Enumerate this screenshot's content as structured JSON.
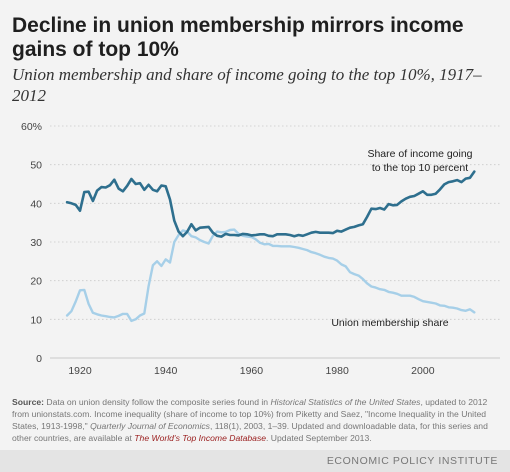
{
  "title": "Decline in union membership mirrors income gains of top 10%",
  "subtitle": "Union membership and share of income going to the top 10%, 1917–2012",
  "chart_data": {
    "type": "line",
    "xlim": [
      1913,
      2018
    ],
    "ylim": [
      0,
      60
    ],
    "x_ticks": [
      1920,
      1940,
      1960,
      1980,
      2000
    ],
    "y_ticks": [
      0,
      10,
      20,
      30,
      40,
      50,
      60
    ],
    "y_tick_labels": [
      "0",
      "10",
      "20",
      "30",
      "40",
      "50",
      "60%"
    ],
    "grid": "horizontal dotted",
    "series": [
      {
        "name": "Share of income going to the top 10 percent",
        "label_lines": [
          "Share of income going",
          "to the top 10 percent"
        ],
        "color": "#2e6f8e",
        "x": [
          1917,
          1918,
          1919,
          1920,
          1921,
          1922,
          1923,
          1924,
          1925,
          1926,
          1927,
          1928,
          1929,
          1930,
          1931,
          1932,
          1933,
          1934,
          1935,
          1936,
          1937,
          1938,
          1939,
          1940,
          1941,
          1942,
          1943,
          1944,
          1945,
          1946,
          1947,
          1948,
          1949,
          1950,
          1951,
          1952,
          1953,
          1954,
          1955,
          1956,
          1957,
          1958,
          1959,
          1960,
          1961,
          1962,
          1963,
          1964,
          1965,
          1966,
          1967,
          1968,
          1969,
          1970,
          1971,
          1972,
          1973,
          1974,
          1975,
          1976,
          1977,
          1978,
          1979,
          1980,
          1981,
          1982,
          1983,
          1984,
          1985,
          1986,
          1987,
          1988,
          1989,
          1990,
          1991,
          1992,
          1993,
          1994,
          1995,
          1996,
          1997,
          1998,
          1999,
          2000,
          2001,
          2002,
          2003,
          2004,
          2005,
          2006,
          2007,
          2008,
          2009,
          2010,
          2011,
          2012
        ],
        "values": [
          40.3,
          40.0,
          39.6,
          38.1,
          42.9,
          43.0,
          40.6,
          43.3,
          44.2,
          44.1,
          44.7,
          46.1,
          43.8,
          43.1,
          44.5,
          46.3,
          45.0,
          45.2,
          43.5,
          44.8,
          43.5,
          43.1,
          44.6,
          44.4,
          41.0,
          35.5,
          32.7,
          31.5,
          32.6,
          34.6,
          33.0,
          33.7,
          33.8,
          33.9,
          32.4,
          31.6,
          31.4,
          32.1,
          31.8,
          31.8,
          31.7,
          32.1,
          32.0,
          31.7,
          31.8,
          32.0,
          32.0,
          31.6,
          31.5,
          32.0,
          32.0,
          32.0,
          31.8,
          31.5,
          31.8,
          31.6,
          32.0,
          32.4,
          32.6,
          32.4,
          32.4,
          32.4,
          32.3,
          32.9,
          32.7,
          33.2,
          33.7,
          33.9,
          34.3,
          34.6,
          36.5,
          38.6,
          38.5,
          38.8,
          38.4,
          39.8,
          39.5,
          39.6,
          40.5,
          41.2,
          41.7,
          41.9,
          42.5,
          43.1,
          42.2,
          42.2,
          42.5,
          43.6,
          44.9,
          45.5,
          45.7,
          46.0,
          45.5,
          46.4,
          46.6,
          48.2
        ]
      },
      {
        "name": "Union membership share",
        "label_lines": [
          "Union membership share"
        ],
        "color": "#a6cfe8",
        "x": [
          1917,
          1918,
          1919,
          1920,
          1921,
          1922,
          1923,
          1924,
          1925,
          1926,
          1927,
          1928,
          1929,
          1930,
          1931,
          1932,
          1933,
          1934,
          1935,
          1936,
          1937,
          1938,
          1939,
          1940,
          1941,
          1942,
          1943,
          1944,
          1945,
          1946,
          1947,
          1948,
          1949,
          1950,
          1951,
          1952,
          1953,
          1954,
          1955,
          1956,
          1957,
          1958,
          1959,
          1960,
          1961,
          1962,
          1963,
          1964,
          1965,
          1966,
          1967,
          1968,
          1969,
          1970,
          1971,
          1972,
          1973,
          1974,
          1975,
          1976,
          1977,
          1978,
          1979,
          1980,
          1981,
          1982,
          1983,
          1984,
          1985,
          1986,
          1987,
          1988,
          1989,
          1990,
          1991,
          1992,
          1993,
          1994,
          1995,
          1996,
          1997,
          1998,
          1999,
          2000,
          2001,
          2002,
          2003,
          2004,
          2005,
          2006,
          2007,
          2008,
          2009,
          2010,
          2011,
          2012
        ],
        "values": [
          11.0,
          12.1,
          14.6,
          17.5,
          17.6,
          14.0,
          11.7,
          11.3,
          11.0,
          10.8,
          10.6,
          10.5,
          10.9,
          11.4,
          11.4,
          9.6,
          10.0,
          11.0,
          11.5,
          18.6,
          24.0,
          25.0,
          23.8,
          25.5,
          24.7,
          30.0,
          31.8,
          33.0,
          32.7,
          31.5,
          31.2,
          30.5,
          30.0,
          29.6,
          31.6,
          32.7,
          32.5,
          32.6,
          33.1,
          33.2,
          32.1,
          31.6,
          31.4,
          31.3,
          30.7,
          29.8,
          29.4,
          29.5,
          29.0,
          29.0,
          28.9,
          28.9,
          28.9,
          28.7,
          28.5,
          28.2,
          27.9,
          27.4,
          27.1,
          26.7,
          26.2,
          25.9,
          25.7,
          25.2,
          24.2,
          23.7,
          22.2,
          21.7,
          21.3,
          20.4,
          19.3,
          18.5,
          18.2,
          17.8,
          17.6,
          17.1,
          16.9,
          16.6,
          16.1,
          16.1,
          16.1,
          15.8,
          15.2,
          14.7,
          14.5,
          14.3,
          14.1,
          13.6,
          13.5,
          13.1,
          13.0,
          12.8,
          12.4,
          12.2,
          12.6,
          11.8
        ]
      }
    ]
  },
  "source": {
    "label": "Source:",
    "text1": "Data on union density follow the composite series found in",
    "hist_stats": "Historical Statistics of the United States",
    "text2": ", updated to 2012 from unionstats.com. Income inequality (share of income to top 10%) from Piketty and Saez, \"Income Inequality in the United States, 1913-1998,\"",
    "journal": "Quarterly Journal of Economics",
    "text3": ", 118(1), 2003, 1–39. Updated and downloadable data, for this series and other countries, are available at",
    "database": "The World's Top Income Database",
    "text4": ". Updated September 2013."
  },
  "organization": "ECONOMIC POLICY INSTITUTE"
}
